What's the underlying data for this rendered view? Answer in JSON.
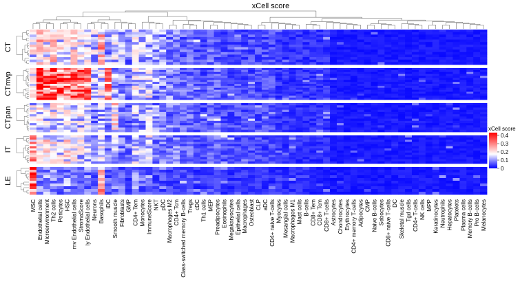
{
  "chart_data": {
    "type": "heatmap",
    "title": "xCell score",
    "legend": {
      "title": "xCell score",
      "ticks": [
        "0.4",
        "0.3",
        "0.2",
        "0.1",
        "0"
      ],
      "range": [
        0,
        0.4
      ],
      "placement": "right",
      "colors": [
        "#0000ff",
        "#ffffff",
        "#ff0000"
      ]
    },
    "groups": [
      {
        "label": "CT",
        "n_rows": 14
      },
      {
        "label": "CTmvp",
        "n_rows": 16
      },
      {
        "label": "CTpan",
        "n_rows": 13
      },
      {
        "label": "IT",
        "n_rows": 13
      },
      {
        "label": "LE",
        "n_rows": 10
      }
    ],
    "columns": [
      "MSC",
      "Endothelial cells",
      "Microenvironment",
      "Th2 cells",
      "Pericytes",
      "HSC",
      "mv Endothelial cells",
      "StromaScore",
      "ly Endothelial cells",
      "Neurons",
      "Basophils",
      "iDC",
      "Smooth muscle",
      "Fibroblasts",
      "GMP",
      "CD4+ Tem",
      "Monocytes",
      "ImmuneScore",
      "NKT",
      "pDC",
      "Macrophages M2",
      "CD4+ Tcm",
      "Class-switched memory B-cells",
      "Tregs",
      "cDC",
      "Th1 cells",
      "MEP",
      "Preadipocytes",
      "Eosinophils",
      "Megakaryocytes",
      "Epithelial cells",
      "Macrophages",
      "Osteoblast",
      "CLP",
      "aDC",
      "CD4+ naive T-cells",
      "Myocytes",
      "Mesangial cells",
      "Macrophages M1",
      "Mast cells",
      "B-cells",
      "CD8+ Tem",
      "CD8+ Tcm",
      "CD8+ T-cells",
      "Astrocytes",
      "Chondrocytes",
      "Erythrocytes",
      "CD4+ memory T-cells",
      "Adipocytes",
      "CMP",
      "Naive B-cells",
      "Sebocytes",
      "CD8+ naive T-cells",
      "DC",
      "Skeletal muscle",
      "Tgd cells",
      "CD4+ T-cells",
      "NK cells",
      "MPP",
      "Keratinocytes",
      "Neutrophils",
      "Hepatocytes",
      "Platelets",
      "Plasma cells",
      "Memory B-cells",
      "Pro B-cells",
      "Melanocytes"
    ],
    "column_means": [
      [
        0.12,
        0.18,
        0.14,
        0.16,
        0.12,
        0.1,
        0.13,
        0.12,
        0.1,
        0.09,
        0.2,
        0.06,
        0.1,
        0.06,
        0.05,
        0.09,
        0.08,
        0.08,
        0.06,
        0.06,
        0.05,
        0.05,
        0.04,
        0.04,
        0.03,
        0.03,
        0.04,
        0.04,
        0.03,
        0.03,
        0.03,
        0.03,
        0.03,
        0.03,
        0.03,
        0.03,
        0.02,
        0.02,
        0.02,
        0.02,
        0.02,
        0.02,
        0.02,
        0.02,
        0.01,
        0.01,
        0.01,
        0.01,
        0.01,
        0.01,
        0.01,
        0.01,
        0.01,
        0.01,
        0.01,
        0.01,
        0.01,
        0.01,
        0.01,
        0.01,
        0.01,
        0.01,
        0.01,
        0.01,
        0.01,
        0.01,
        0.01
      ],
      [
        0.1,
        0.36,
        0.3,
        0.3,
        0.28,
        0.26,
        0.3,
        0.28,
        0.26,
        0.08,
        0.1,
        0.22,
        0.08,
        0.06,
        0.05,
        0.1,
        0.08,
        0.1,
        0.06,
        0.06,
        0.05,
        0.05,
        0.04,
        0.04,
        0.03,
        0.03,
        0.04,
        0.04,
        0.03,
        0.03,
        0.03,
        0.03,
        0.03,
        0.03,
        0.03,
        0.03,
        0.02,
        0.02,
        0.02,
        0.02,
        0.02,
        0.02,
        0.02,
        0.02,
        0.01,
        0.01,
        0.01,
        0.01,
        0.01,
        0.01,
        0.01,
        0.01,
        0.01,
        0.01,
        0.01,
        0.01,
        0.01,
        0.01,
        0.01,
        0.01,
        0.01,
        0.01,
        0.01,
        0.01,
        0.01,
        0.01,
        0.01
      ],
      [
        0.1,
        0.12,
        0.1,
        0.12,
        0.1,
        0.1,
        0.08,
        0.1,
        0.08,
        0.05,
        0.08,
        0.05,
        0.14,
        0.05,
        0.04,
        0.08,
        0.06,
        0.08,
        0.06,
        0.05,
        0.05,
        0.05,
        0.04,
        0.04,
        0.03,
        0.03,
        0.04,
        0.04,
        0.03,
        0.03,
        0.03,
        0.03,
        0.03,
        0.03,
        0.03,
        0.03,
        0.02,
        0.02,
        0.02,
        0.02,
        0.02,
        0.02,
        0.02,
        0.02,
        0.01,
        0.01,
        0.01,
        0.01,
        0.01,
        0.01,
        0.01,
        0.01,
        0.01,
        0.01,
        0.01,
        0.01,
        0.01,
        0.01,
        0.01,
        0.01,
        0.01,
        0.01,
        0.01,
        0.01,
        0.01,
        0.01,
        0.01
      ],
      [
        0.2,
        0.1,
        0.14,
        0.12,
        0.1,
        0.14,
        0.1,
        0.1,
        0.08,
        0.06,
        0.1,
        0.05,
        0.08,
        0.05,
        0.04,
        0.08,
        0.06,
        0.08,
        0.05,
        0.05,
        0.05,
        0.05,
        0.04,
        0.04,
        0.03,
        0.03,
        0.04,
        0.04,
        0.03,
        0.03,
        0.03,
        0.03,
        0.03,
        0.03,
        0.03,
        0.03,
        0.02,
        0.02,
        0.02,
        0.02,
        0.02,
        0.02,
        0.02,
        0.02,
        0.01,
        0.01,
        0.01,
        0.01,
        0.01,
        0.01,
        0.01,
        0.01,
        0.01,
        0.01,
        0.01,
        0.01,
        0.01,
        0.01,
        0.01,
        0.01,
        0.01,
        0.01,
        0.01,
        0.01,
        0.01,
        0.01,
        0.01
      ],
      [
        0.34,
        0.06,
        0.06,
        0.05,
        0.05,
        0.06,
        0.05,
        0.05,
        0.05,
        0.04,
        0.22,
        0.04,
        0.03,
        0.04,
        0.03,
        0.05,
        0.04,
        0.05,
        0.03,
        0.03,
        0.03,
        0.03,
        0.03,
        0.03,
        0.02,
        0.02,
        0.03,
        0.03,
        0.02,
        0.02,
        0.02,
        0.02,
        0.02,
        0.02,
        0.02,
        0.02,
        0.02,
        0.02,
        0.02,
        0.02,
        0.02,
        0.01,
        0.01,
        0.01,
        0.01,
        0.01,
        0.01,
        0.01,
        0.01,
        0.01,
        0.01,
        0.01,
        0.01,
        0.01,
        0.01,
        0.01,
        0.01,
        0.01,
        0.01,
        0.01,
        0.01,
        0.01,
        0.01,
        0.01,
        0.01,
        0.01,
        0.01
      ]
    ]
  }
}
